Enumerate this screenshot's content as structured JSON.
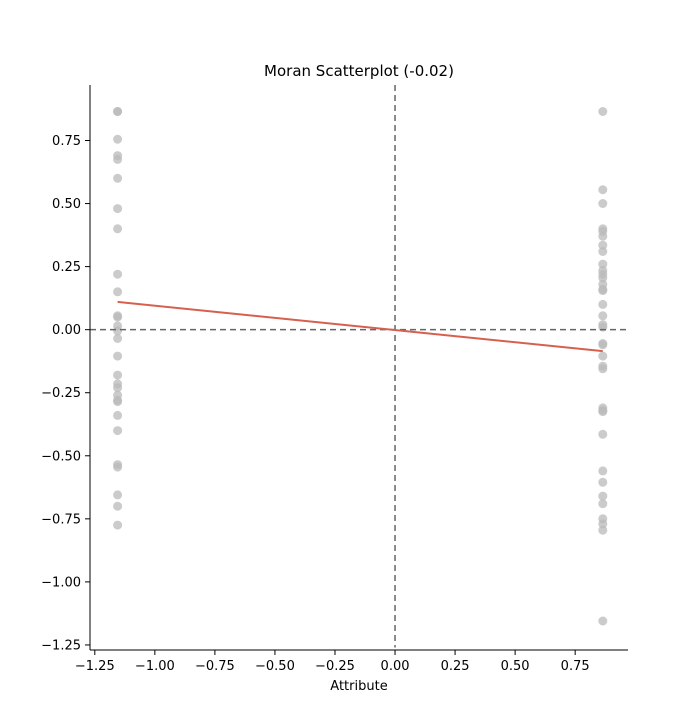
{
  "chart_data": {
    "type": "scatter",
    "title": "Moran Scatterplot (-0.02)",
    "xlabel": "Attribute",
    "ylabel": "",
    "xlim": [
      -1.27,
      0.97
    ],
    "ylim": [
      -1.27,
      0.97
    ],
    "xticks": [
      -1.25,
      -1.0,
      -0.75,
      -0.5,
      -0.25,
      0.0,
      0.25,
      0.5,
      0.75
    ],
    "yticks": [
      -1.25,
      -1.0,
      -0.75,
      -0.5,
      -0.25,
      0.0,
      0.25,
      0.5,
      0.75
    ],
    "xtick_labels": [
      "−1.25",
      "−1.00",
      "−0.75",
      "−0.50",
      "−0.25",
      "0.00",
      "0.25",
      "0.50",
      "0.75"
    ],
    "ytick_labels": [
      "−1.25",
      "−1.00",
      "−0.75",
      "−0.50",
      "−0.25",
      "0.00",
      "0.25",
      "0.50",
      "0.75"
    ],
    "grid": false,
    "point_color": "#bababa",
    "fit_color": "#d6604d",
    "reference_line_color": "#666666",
    "reference_lines": {
      "x": 0.0,
      "y": 0.0
    },
    "series": [
      {
        "points": [
          [
            -1.155,
            0.865
          ],
          [
            -1.155,
            0.865
          ],
          [
            -1.155,
            0.755
          ],
          [
            -1.155,
            0.69
          ],
          [
            -1.155,
            0.675
          ],
          [
            -1.155,
            0.6
          ],
          [
            -1.155,
            0.48
          ],
          [
            -1.155,
            0.4
          ],
          [
            -1.155,
            0.22
          ],
          [
            -1.155,
            0.15
          ],
          [
            -1.155,
            0.055
          ],
          [
            -1.155,
            0.05
          ],
          [
            -1.155,
            0.015
          ],
          [
            -1.155,
            -0.005
          ],
          [
            -1.155,
            -0.035
          ],
          [
            -1.155,
            -0.105
          ],
          [
            -1.155,
            -0.18
          ],
          [
            -1.155,
            -0.215
          ],
          [
            -1.155,
            -0.23
          ],
          [
            -1.155,
            -0.26
          ],
          [
            -1.155,
            -0.28
          ],
          [
            -1.155,
            -0.285
          ],
          [
            -1.155,
            -0.34
          ],
          [
            -1.155,
            -0.4
          ],
          [
            -1.155,
            -0.535
          ],
          [
            -1.155,
            -0.545
          ],
          [
            -1.155,
            -0.655
          ],
          [
            -1.155,
            -0.7
          ],
          [
            -1.155,
            -0.775
          ],
          [
            0.865,
            0.865
          ],
          [
            0.865,
            0.555
          ],
          [
            0.865,
            0.5
          ],
          [
            0.865,
            0.4
          ],
          [
            0.865,
            0.39
          ],
          [
            0.865,
            0.37
          ],
          [
            0.865,
            0.335
          ],
          [
            0.865,
            0.31
          ],
          [
            0.865,
            0.26
          ],
          [
            0.865,
            0.235
          ],
          [
            0.865,
            0.22
          ],
          [
            0.865,
            0.205
          ],
          [
            0.865,
            0.18
          ],
          [
            0.865,
            0.16
          ],
          [
            0.865,
            0.155
          ],
          [
            0.865,
            0.1
          ],
          [
            0.865,
            0.055
          ],
          [
            0.865,
            0.02
          ],
          [
            0.865,
            0.01
          ],
          [
            0.865,
            -0.055
          ],
          [
            0.865,
            -0.06
          ],
          [
            0.865,
            -0.105
          ],
          [
            0.865,
            -0.145
          ],
          [
            0.865,
            -0.155
          ],
          [
            0.865,
            -0.31
          ],
          [
            0.865,
            -0.32
          ],
          [
            0.865,
            -0.325
          ],
          [
            0.865,
            -0.415
          ],
          [
            0.865,
            -0.56
          ],
          [
            0.865,
            -0.605
          ],
          [
            0.865,
            -0.66
          ],
          [
            0.865,
            -0.69
          ],
          [
            0.865,
            -0.75
          ],
          [
            0.865,
            -0.77
          ],
          [
            0.865,
            -0.795
          ],
          [
            0.865,
            -1.155
          ]
        ]
      }
    ],
    "fit_line": {
      "x": [
        -1.155,
        0.865
      ],
      "y": [
        0.11,
        -0.085
      ]
    }
  }
}
